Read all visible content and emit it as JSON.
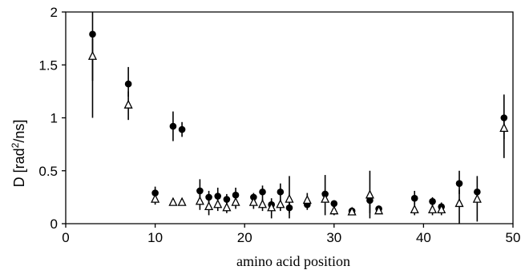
{
  "chart_data": {
    "type": "scatter",
    "xlabel": "amino acid position",
    "ylabel_main": "D [rad",
    "ylabel_sup": "2",
    "ylabel_tail": "/ns]",
    "xlim": [
      0,
      50
    ],
    "ylim": [
      0,
      2
    ],
    "xticks": [
      "0",
      "10",
      "20",
      "30",
      "40",
      "50"
    ],
    "yticks": [
      "0",
      "0.5",
      "1",
      "1.5",
      "2"
    ],
    "grid": false,
    "series": [
      {
        "marker": "filled-circle",
        "points": [
          {
            "x": 3,
            "y": 1.79,
            "lo": 1.0,
            "hi": 2.05
          },
          {
            "x": 7,
            "y": 1.32,
            "lo": 1.2,
            "hi": 1.48
          },
          {
            "x": 10,
            "y": 0.29,
            "lo": 0.24,
            "hi": 0.35
          },
          {
            "x": 12,
            "y": 0.92,
            "lo": 0.78,
            "hi": 1.06
          },
          {
            "x": 13,
            "y": 0.89,
            "lo": 0.82,
            "hi": 0.96
          },
          {
            "x": 15,
            "y": 0.31,
            "lo": 0.2,
            "hi": 0.42
          },
          {
            "x": 16,
            "y": 0.25,
            "lo": 0.2,
            "hi": 0.31
          },
          {
            "x": 17,
            "y": 0.26,
            "lo": 0.2,
            "hi": 0.34
          },
          {
            "x": 18,
            "y": 0.23,
            "lo": 0.18,
            "hi": 0.28
          },
          {
            "x": 19,
            "y": 0.27,
            "lo": 0.2,
            "hi": 0.34
          },
          {
            "x": 21,
            "y": 0.25,
            "lo": 0.2,
            "hi": 0.29
          },
          {
            "x": 22,
            "y": 0.3,
            "lo": 0.2,
            "hi": 0.36
          },
          {
            "x": 23,
            "y": 0.18,
            "lo": 0.14,
            "hi": 0.22
          },
          {
            "x": 24,
            "y": 0.3,
            "lo": 0.2,
            "hi": 0.38
          },
          {
            "x": 25,
            "y": 0.15,
            "lo": 0.1,
            "hi": 0.25
          },
          {
            "x": 27,
            "y": 0.18,
            "lo": 0.13,
            "hi": 0.22
          },
          {
            "x": 29,
            "y": 0.28,
            "lo": 0.2,
            "hi": 0.46
          },
          {
            "x": 30,
            "y": 0.19,
            "lo": 0.14,
            "hi": 0.22
          },
          {
            "x": 32,
            "y": 0.12,
            "lo": 0.09,
            "hi": 0.15
          },
          {
            "x": 34,
            "y": 0.22,
            "lo": 0.1,
            "hi": 0.3
          },
          {
            "x": 35,
            "y": 0.14,
            "lo": 0.1,
            "hi": 0.17
          },
          {
            "x": 39,
            "y": 0.24,
            "lo": 0.18,
            "hi": 0.31
          },
          {
            "x": 41,
            "y": 0.21,
            "lo": 0.17,
            "hi": 0.25
          },
          {
            "x": 42,
            "y": 0.16,
            "lo": 0.12,
            "hi": 0.2
          },
          {
            "x": 44,
            "y": 0.38,
            "lo": 0.28,
            "hi": 0.5
          },
          {
            "x": 46,
            "y": 0.3,
            "lo": 0.2,
            "hi": 0.45
          },
          {
            "x": 49,
            "y": 1.0,
            "lo": 0.8,
            "hi": 1.22
          }
        ]
      },
      {
        "marker": "open-triangle",
        "points": [
          {
            "x": 3,
            "y": 1.58,
            "lo": 1.35,
            "hi": 1.75
          },
          {
            "x": 7,
            "y": 1.12,
            "lo": 0.98,
            "hi": 1.25
          },
          {
            "x": 10,
            "y": 0.23,
            "lo": 0.18,
            "hi": 0.27
          },
          {
            "x": 12,
            "y": 0.2,
            "lo": 0.17,
            "hi": 0.23
          },
          {
            "x": 13,
            "y": 0.2,
            "lo": 0.17,
            "hi": 0.23
          },
          {
            "x": 15,
            "y": 0.21,
            "lo": 0.13,
            "hi": 0.3
          },
          {
            "x": 16,
            "y": 0.16,
            "lo": 0.08,
            "hi": 0.24
          },
          {
            "x": 17,
            "y": 0.18,
            "lo": 0.12,
            "hi": 0.25
          },
          {
            "x": 18,
            "y": 0.15,
            "lo": 0.1,
            "hi": 0.22
          },
          {
            "x": 19,
            "y": 0.2,
            "lo": 0.14,
            "hi": 0.27
          },
          {
            "x": 21,
            "y": 0.2,
            "lo": 0.14,
            "hi": 0.26
          },
          {
            "x": 22,
            "y": 0.18,
            "lo": 0.12,
            "hi": 0.23
          },
          {
            "x": 23,
            "y": 0.15,
            "lo": 0.05,
            "hi": 0.24
          },
          {
            "x": 24,
            "y": 0.18,
            "lo": 0.12,
            "hi": 0.23
          },
          {
            "x": 25,
            "y": 0.23,
            "lo": 0.05,
            "hi": 0.45
          },
          {
            "x": 27,
            "y": 0.22,
            "lo": 0.15,
            "hi": 0.29
          },
          {
            "x": 29,
            "y": 0.23,
            "lo": 0.08,
            "hi": 0.32
          },
          {
            "x": 30,
            "y": 0.12,
            "lo": 0.08,
            "hi": 0.16
          },
          {
            "x": 32,
            "y": 0.11,
            "lo": 0.08,
            "hi": 0.14
          },
          {
            "x": 34,
            "y": 0.27,
            "lo": 0.05,
            "hi": 0.5
          },
          {
            "x": 35,
            "y": 0.12,
            "lo": 0.09,
            "hi": 0.16
          },
          {
            "x": 39,
            "y": 0.13,
            "lo": 0.08,
            "hi": 0.25
          },
          {
            "x": 41,
            "y": 0.13,
            "lo": 0.08,
            "hi": 0.2
          },
          {
            "x": 42,
            "y": 0.13,
            "lo": 0.08,
            "hi": 0.19
          },
          {
            "x": 44,
            "y": 0.19,
            "lo": 0.0,
            "hi": 0.32
          },
          {
            "x": 46,
            "y": 0.23,
            "lo": 0.02,
            "hi": 0.33
          },
          {
            "x": 49,
            "y": 0.9,
            "lo": 0.62,
            "hi": 1.0
          }
        ]
      }
    ]
  }
}
